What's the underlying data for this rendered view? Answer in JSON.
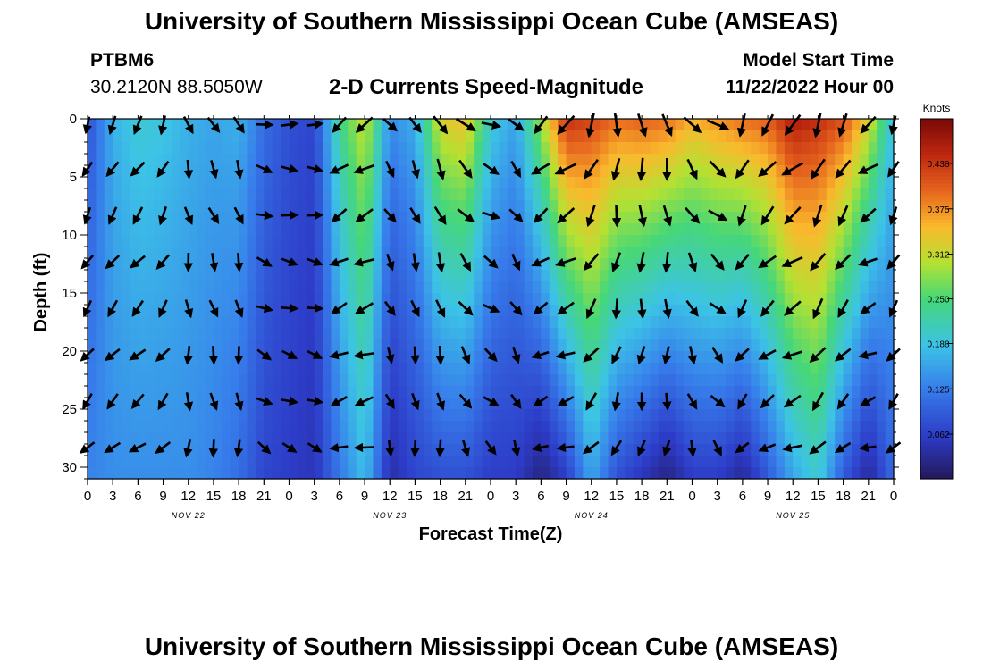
{
  "header": {
    "title": "University of Southern Mississippi Ocean Cube (AMSEAS)",
    "station": "PTBM6",
    "coords": "30.2120N  88.5050W",
    "subtitle": "2-D Currents Speed-Magnitude",
    "start_label": "Model Start Time",
    "start_time": "11/22/2022 Hour 00"
  },
  "footer": {
    "title": "University of Southern Mississippi Ocean Cube (AMSEAS)"
  },
  "chart_data": {
    "type": "heatmap",
    "title": "2-D Currents Speed-Magnitude",
    "xlabel": "Forecast Time(Z)",
    "ylabel": "Depth (ft)",
    "x_ticks": [
      "0",
      "3",
      "6",
      "9",
      "12",
      "15",
      "18",
      "21",
      "0",
      "3",
      "6",
      "9",
      "12",
      "15",
      "18",
      "21",
      "0",
      "3",
      "6",
      "9",
      "12",
      "15",
      "18",
      "21",
      "0",
      "3",
      "6",
      "9",
      "12",
      "15",
      "18",
      "21",
      "0"
    ],
    "date_labels": [
      {
        "label": "NOV 22",
        "hour": 12
      },
      {
        "label": "NOV 23",
        "hour": 36
      },
      {
        "label": "NOV 24",
        "hour": 60
      },
      {
        "label": "NOV 25",
        "hour": 84
      }
    ],
    "xlim_hours": [
      0,
      96
    ],
    "y_ticks": [
      0,
      5,
      10,
      15,
      20,
      25,
      30
    ],
    "ylim_ft": [
      0,
      31
    ],
    "colorbar": {
      "unit": "Knots",
      "ticks": [
        "0.438",
        "0.375",
        "0.312",
        "0.250",
        "0.188",
        "0.125",
        "0.062"
      ],
      "range": [
        0,
        0.5
      ]
    },
    "arrow_depths_ft": [
      0.5,
      4.3,
      8.3,
      12.3,
      16.3,
      20.3,
      24.3,
      28.3
    ],
    "arrow_hours": [
      0,
      3,
      6,
      9,
      12,
      15,
      18,
      21,
      24,
      27,
      30,
      33,
      36,
      39,
      42,
      45,
      48,
      51,
      54,
      57,
      60,
      63,
      66,
      69,
      72,
      75,
      78,
      81,
      84,
      87,
      90,
      93,
      96
    ],
    "column_speed_surface": [
      0.08,
      0.17,
      0.2,
      0.19,
      0.17,
      0.16,
      0.17,
      0.11,
      0.08,
      0.07,
      0.24,
      0.32,
      0.14,
      0.17,
      0.33,
      0.35,
      0.2,
      0.16,
      0.3,
      0.45,
      0.43,
      0.4,
      0.41,
      0.4,
      0.36,
      0.38,
      0.4,
      0.41,
      0.47,
      0.45,
      0.42,
      0.33,
      0.18
    ],
    "column_speed_bottom": [
      0.13,
      0.14,
      0.14,
      0.14,
      0.14,
      0.13,
      0.11,
      0.07,
      0.06,
      0.05,
      0.12,
      0.18,
      0.04,
      0.07,
      0.08,
      0.08,
      0.06,
      0.06,
      0.02,
      0.06,
      0.16,
      0.08,
      0.05,
      0.02,
      0.06,
      0.06,
      0.03,
      0.09,
      0.16,
      0.2,
      0.09,
      0.03,
      0.11
    ],
    "column_arrow_dir_deg": [
      200,
      205,
      210,
      200,
      160,
      150,
      155,
      100,
      90,
      90,
      230,
      235,
      140,
      150,
      150,
      130,
      110,
      135,
      225,
      230,
      200,
      180,
      170,
      165,
      140,
      120,
      200,
      215,
      225,
      200,
      205,
      230,
      200
    ]
  }
}
